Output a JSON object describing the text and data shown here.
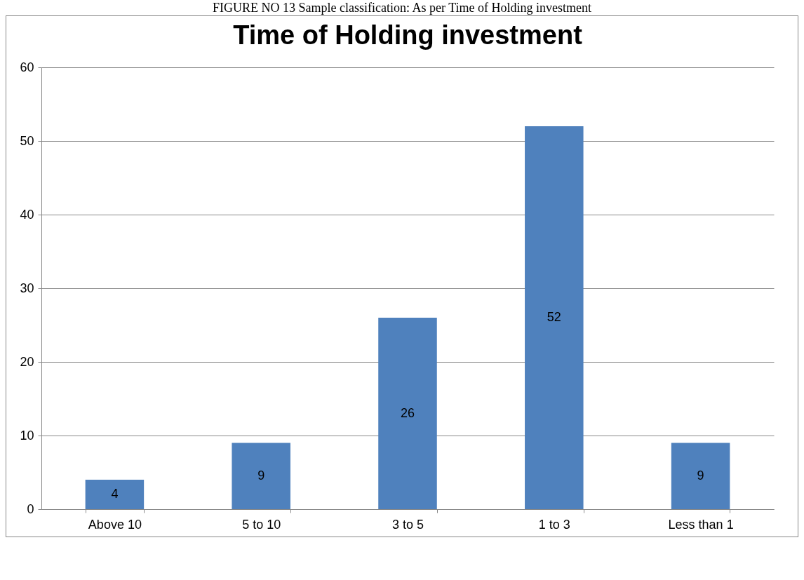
{
  "chart_data": {
    "type": "bar",
    "title": "Time of Holding investment",
    "annotations": [
      "FIGURE NO 13 Sample classification: As per Time of Holding investment"
    ],
    "categories": [
      "Above 10",
      "5 to 10",
      "3 to 5",
      "1 to 3",
      "Less than 1"
    ],
    "values": [
      4,
      9,
      26,
      52,
      9
    ],
    "color": "#4f81bd",
    "ylim": [
      0,
      60
    ],
    "yticks": [
      0,
      10,
      20,
      30,
      40,
      50,
      60
    ],
    "grid": "y",
    "data_labels": true
  }
}
